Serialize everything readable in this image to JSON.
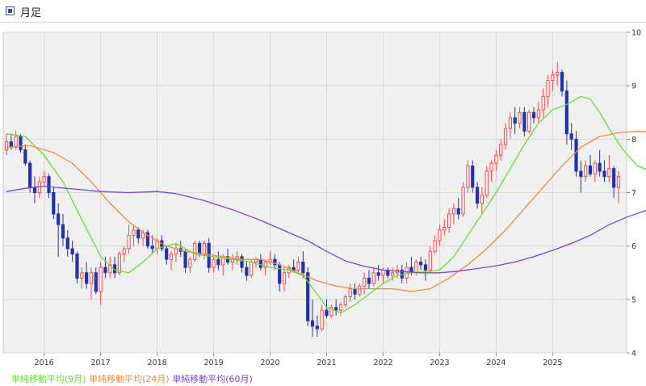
{
  "header": {
    "title": "月足"
  },
  "legend": [
    {
      "label": "単純移動平均(9月)",
      "color": "#66dd33"
    },
    {
      "label": "単純移動平均(24月)",
      "color": "#f08a40"
    },
    {
      "label": "単純移動平均(60月)",
      "color": "#7744dd"
    }
  ],
  "colors": {
    "up": "#ff4444",
    "down": "#2233aa",
    "plot_bg": "#f0f0f0",
    "grid": "#d8d8d8"
  },
  "chart_data": {
    "type": "candlestick",
    "title": "",
    "xlabel": "",
    "ylabel": "",
    "ylim": [
      4,
      10
    ],
    "yticks": [
      4,
      5,
      6,
      7,
      8,
      9,
      10
    ],
    "grid": true,
    "x": [
      "2015-05",
      "2025-04"
    ],
    "xticks": [
      {
        "label": "2016",
        "month": "2016-01"
      },
      {
        "label": "2017",
        "month": "2017-01"
      },
      {
        "label": "2018",
        "month": "2018-01"
      },
      {
        "label": "2019",
        "month": "2019-01"
      },
      {
        "label": "2020",
        "month": "2020-01"
      },
      {
        "label": "2021",
        "month": "2021-01"
      },
      {
        "label": "2022",
        "month": "2022-01"
      },
      {
        "label": "2023",
        "month": "2023-01"
      },
      {
        "label": "2024",
        "month": "2024-01"
      },
      {
        "label": "2025",
        "month": "2025-01"
      }
    ],
    "candles_ohlc": [
      [
        7.8,
        8.1,
        7.7,
        7.95
      ],
      [
        7.95,
        8.1,
        7.8,
        7.85
      ],
      [
        7.85,
        8.15,
        7.8,
        8.05
      ],
      [
        8.05,
        8.1,
        7.75,
        7.8
      ],
      [
        7.8,
        7.9,
        7.5,
        7.55
      ],
      [
        7.55,
        7.6,
        7.0,
        7.1
      ],
      [
        7.1,
        7.3,
        6.8,
        7.0
      ],
      [
        7.0,
        7.3,
        6.9,
        7.2
      ],
      [
        7.2,
        7.4,
        7.1,
        7.3
      ],
      [
        7.3,
        7.35,
        6.9,
        7.0
      ],
      [
        7.0,
        7.1,
        6.5,
        6.6
      ],
      [
        6.6,
        6.8,
        5.8,
        6.4
      ],
      [
        6.4,
        6.6,
        6.0,
        6.15
      ],
      [
        6.15,
        6.3,
        5.8,
        5.95
      ],
      [
        5.95,
        6.1,
        5.7,
        5.85
      ],
      [
        5.85,
        5.9,
        5.3,
        5.4
      ],
      [
        5.4,
        5.6,
        5.2,
        5.5
      ],
      [
        5.5,
        5.7,
        5.2,
        5.3
      ],
      [
        5.3,
        5.6,
        5.0,
        5.5
      ],
      [
        5.5,
        5.6,
        5.1,
        5.15
      ],
      [
        5.15,
        5.7,
        4.9,
        5.6
      ],
      [
        5.6,
        5.8,
        5.4,
        5.5
      ],
      [
        5.5,
        5.8,
        5.4,
        5.65
      ],
      [
        5.65,
        5.8,
        5.4,
        5.5
      ],
      [
        5.5,
        5.9,
        5.45,
        5.85
      ],
      [
        5.85,
        6.0,
        5.7,
        5.95
      ],
      [
        5.95,
        6.4,
        5.85,
        6.2
      ],
      [
        6.2,
        6.4,
        6.0,
        6.3
      ],
      [
        6.3,
        6.35,
        6.05,
        6.15
      ],
      [
        6.15,
        6.3,
        6.0,
        6.25
      ],
      [
        6.25,
        6.3,
        5.95,
        6.0
      ],
      [
        6.0,
        6.2,
        5.85,
        5.95
      ],
      [
        5.95,
        6.15,
        5.85,
        6.1
      ],
      [
        6.1,
        6.2,
        5.9,
        5.95
      ],
      [
        5.95,
        6.0,
        5.65,
        5.75
      ],
      [
        5.75,
        5.9,
        5.55,
        5.85
      ],
      [
        5.85,
        6.05,
        5.7,
        5.95
      ],
      [
        5.95,
        6.1,
        5.8,
        5.9
      ],
      [
        5.9,
        5.95,
        5.5,
        5.6
      ],
      [
        5.6,
        5.8,
        5.5,
        5.75
      ],
      [
        5.75,
        6.1,
        5.7,
        6.05
      ],
      [
        6.05,
        6.1,
        5.8,
        5.85
      ],
      [
        5.85,
        6.1,
        5.75,
        6.05
      ],
      [
        6.05,
        6.15,
        5.5,
        5.6
      ],
      [
        5.6,
        5.8,
        5.5,
        5.75
      ],
      [
        5.75,
        5.9,
        5.55,
        5.65
      ],
      [
        5.65,
        5.85,
        5.45,
        5.8
      ],
      [
        5.8,
        5.95,
        5.65,
        5.7
      ],
      [
        5.7,
        5.85,
        5.55,
        5.75
      ],
      [
        5.75,
        5.9,
        5.65,
        5.8
      ],
      [
        5.8,
        5.85,
        5.5,
        5.6
      ],
      [
        5.6,
        5.7,
        5.35,
        5.45
      ],
      [
        5.45,
        5.75,
        5.4,
        5.7
      ],
      [
        5.7,
        5.8,
        5.6,
        5.75
      ],
      [
        5.75,
        5.85,
        5.55,
        5.6
      ],
      [
        5.6,
        5.75,
        5.45,
        5.7
      ],
      [
        5.7,
        5.9,
        5.65,
        5.75
      ],
      [
        5.75,
        5.85,
        5.55,
        5.65
      ],
      [
        5.65,
        5.7,
        5.15,
        5.3
      ],
      [
        5.3,
        5.6,
        5.15,
        5.5
      ],
      [
        5.5,
        5.65,
        5.4,
        5.6
      ],
      [
        5.6,
        5.75,
        5.5,
        5.55
      ],
      [
        5.55,
        5.8,
        5.5,
        5.7
      ],
      [
        5.7,
        5.9,
        5.4,
        5.5
      ],
      [
        5.5,
        5.6,
        4.5,
        4.6
      ],
      [
        4.6,
        5.0,
        4.3,
        4.5
      ],
      [
        4.5,
        4.7,
        4.3,
        4.45
      ],
      [
        4.45,
        4.9,
        4.4,
        4.8
      ],
      [
        4.8,
        5.0,
        4.65,
        4.7
      ],
      [
        4.7,
        4.9,
        4.65,
        4.85
      ],
      [
        4.85,
        5.0,
        4.7,
        4.8
      ],
      [
        4.8,
        4.95,
        4.7,
        4.9
      ],
      [
        4.9,
        5.1,
        4.85,
        5.05
      ],
      [
        5.05,
        5.3,
        4.95,
        5.2
      ],
      [
        5.2,
        5.3,
        5.0,
        5.1
      ],
      [
        5.1,
        5.3,
        5.05,
        5.25
      ],
      [
        5.25,
        5.5,
        5.1,
        5.4
      ],
      [
        5.4,
        5.55,
        5.2,
        5.3
      ],
      [
        5.3,
        5.6,
        5.25,
        5.5
      ],
      [
        5.5,
        5.65,
        5.35,
        5.45
      ],
      [
        5.45,
        5.6,
        5.3,
        5.55
      ],
      [
        5.55,
        5.6,
        5.4,
        5.45
      ],
      [
        5.45,
        5.6,
        5.35,
        5.5
      ],
      [
        5.5,
        5.65,
        5.4,
        5.55
      ],
      [
        5.55,
        5.65,
        5.3,
        5.4
      ],
      [
        5.4,
        5.7,
        5.3,
        5.6
      ],
      [
        5.6,
        5.8,
        5.45,
        5.5
      ],
      [
        5.5,
        5.75,
        5.45,
        5.7
      ],
      [
        5.7,
        5.8,
        5.55,
        5.65
      ],
      [
        5.65,
        5.75,
        5.35,
        5.55
      ],
      [
        5.55,
        6.0,
        5.5,
        5.9
      ],
      [
        5.9,
        6.2,
        5.85,
        6.1
      ],
      [
        6.1,
        6.4,
        6.0,
        6.3
      ],
      [
        6.3,
        6.5,
        6.2,
        6.35
      ],
      [
        6.35,
        6.7,
        6.25,
        6.6
      ],
      [
        6.6,
        6.8,
        6.4,
        6.7
      ],
      [
        6.7,
        6.9,
        6.5,
        6.6
      ],
      [
        6.6,
        7.2,
        6.55,
        7.1
      ],
      [
        7.1,
        7.6,
        7.0,
        7.5
      ],
      [
        7.5,
        7.6,
        7.0,
        7.1
      ],
      [
        7.1,
        7.2,
        6.7,
        6.8
      ],
      [
        6.8,
        7.1,
        6.6,
        6.95
      ],
      [
        6.95,
        7.5,
        6.9,
        7.4
      ],
      [
        7.4,
        7.6,
        7.2,
        7.55
      ],
      [
        7.55,
        7.8,
        7.4,
        7.7
      ],
      [
        7.7,
        8.0,
        7.6,
        7.9
      ],
      [
        7.9,
        8.3,
        7.8,
        8.2
      ],
      [
        8.2,
        8.5,
        8.0,
        8.4
      ],
      [
        8.4,
        8.6,
        8.1,
        8.3
      ],
      [
        8.3,
        8.6,
        8.2,
        8.5
      ],
      [
        8.5,
        8.6,
        8.05,
        8.15
      ],
      [
        8.15,
        8.55,
        8.1,
        8.5
      ],
      [
        8.5,
        8.6,
        8.3,
        8.4
      ],
      [
        8.4,
        8.7,
        8.3,
        8.55
      ],
      [
        8.55,
        8.95,
        8.4,
        8.8
      ],
      [
        8.8,
        9.2,
        8.6,
        9.1
      ],
      [
        9.1,
        9.3,
        8.9,
        9.2
      ],
      [
        9.2,
        9.45,
        9.0,
        9.25
      ],
      [
        9.25,
        9.3,
        8.8,
        8.9
      ],
      [
        8.9,
        9.1,
        7.9,
        8.1
      ],
      [
        8.1,
        8.3,
        7.8,
        8.0
      ],
      [
        8.0,
        8.15,
        7.3,
        7.4
      ],
      [
        7.4,
        7.6,
        7.0,
        7.3
      ],
      [
        7.3,
        7.6,
        7.2,
        7.5
      ],
      [
        7.5,
        7.7,
        7.3,
        7.35
      ],
      [
        7.35,
        7.6,
        7.2,
        7.55
      ],
      [
        7.55,
        7.8,
        7.3,
        7.4
      ],
      [
        7.4,
        7.6,
        7.2,
        7.3
      ],
      [
        7.3,
        7.7,
        7.2,
        7.45
      ],
      [
        7.45,
        7.5,
        6.9,
        7.1
      ],
      [
        7.1,
        7.4,
        6.8,
        7.3
      ]
    ],
    "series": [
      {
        "name": "単純移動平均(9月)",
        "color": "#66dd33",
        "points": [
          [
            0,
            8.1
          ],
          [
            4,
            8.05
          ],
          [
            8,
            7.7
          ],
          [
            12,
            7.2
          ],
          [
            16,
            6.5
          ],
          [
            20,
            5.8
          ],
          [
            23,
            5.55
          ],
          [
            26,
            5.5
          ],
          [
            29,
            5.7
          ],
          [
            32,
            5.95
          ],
          [
            36,
            6.05
          ],
          [
            40,
            5.85
          ],
          [
            44,
            5.8
          ],
          [
            48,
            5.75
          ],
          [
            52,
            5.7
          ],
          [
            56,
            5.6
          ],
          [
            60,
            5.55
          ],
          [
            63,
            5.45
          ],
          [
            66,
            5.1
          ],
          [
            68,
            4.85
          ],
          [
            71,
            4.75
          ],
          [
            74,
            4.9
          ],
          [
            77,
            5.1
          ],
          [
            80,
            5.3
          ],
          [
            83,
            5.45
          ],
          [
            86,
            5.5
          ],
          [
            89,
            5.52
          ],
          [
            92,
            5.55
          ],
          [
            95,
            5.8
          ],
          [
            98,
            6.2
          ],
          [
            101,
            6.6
          ],
          [
            104,
            7.0
          ],
          [
            107,
            7.45
          ],
          [
            110,
            7.9
          ],
          [
            113,
            8.3
          ],
          [
            116,
            8.55
          ],
          [
            119,
            8.65
          ],
          [
            122,
            8.8
          ],
          [
            124,
            8.75
          ],
          [
            126,
            8.5
          ],
          [
            128,
            8.2
          ],
          [
            131,
            7.8
          ],
          [
            134,
            7.5
          ],
          [
            137,
            7.4
          ]
        ]
      },
      {
        "name": "単純移動平均(24月)",
        "color": "#f08a40",
        "points": [
          [
            0,
            7.85
          ],
          [
            5,
            7.88
          ],
          [
            10,
            7.75
          ],
          [
            14,
            7.55
          ],
          [
            18,
            7.2
          ],
          [
            22,
            6.8
          ],
          [
            26,
            6.45
          ],
          [
            30,
            6.2
          ],
          [
            34,
            6.0
          ],
          [
            38,
            5.9
          ],
          [
            42,
            5.85
          ],
          [
            46,
            5.8
          ],
          [
            50,
            5.75
          ],
          [
            54,
            5.75
          ],
          [
            58,
            5.65
          ],
          [
            62,
            5.5
          ],
          [
            66,
            5.35
          ],
          [
            70,
            5.25
          ],
          [
            74,
            5.2
          ],
          [
            78,
            5.2
          ],
          [
            82,
            5.2
          ],
          [
            86,
            5.15
          ],
          [
            90,
            5.2
          ],
          [
            94,
            5.4
          ],
          [
            98,
            5.65
          ],
          [
            102,
            5.95
          ],
          [
            106,
            6.3
          ],
          [
            110,
            6.7
          ],
          [
            114,
            7.1
          ],
          [
            118,
            7.5
          ],
          [
            122,
            7.85
          ],
          [
            126,
            8.05
          ],
          [
            130,
            8.12
          ],
          [
            134,
            8.15
          ],
          [
            137,
            8.13
          ]
        ]
      },
      {
        "name": "単純移動平均(60月)",
        "color": "#7744dd",
        "points": [
          [
            0,
            7.02
          ],
          [
            4,
            7.08
          ],
          [
            8,
            7.12
          ],
          [
            14,
            7.07
          ],
          [
            20,
            7.02
          ],
          [
            26,
            7.0
          ],
          [
            32,
            7.02
          ],
          [
            36,
            6.98
          ],
          [
            42,
            6.85
          ],
          [
            48,
            6.68
          ],
          [
            54,
            6.48
          ],
          [
            60,
            6.25
          ],
          [
            64,
            6.1
          ],
          [
            68,
            5.9
          ],
          [
            72,
            5.72
          ],
          [
            76,
            5.62
          ],
          [
            80,
            5.55
          ],
          [
            84,
            5.52
          ],
          [
            88,
            5.5
          ],
          [
            92,
            5.5
          ],
          [
            96,
            5.53
          ],
          [
            100,
            5.58
          ],
          [
            104,
            5.63
          ],
          [
            108,
            5.7
          ],
          [
            112,
            5.8
          ],
          [
            116,
            5.92
          ],
          [
            120,
            6.05
          ],
          [
            124,
            6.2
          ],
          [
            128,
            6.4
          ],
          [
            132,
            6.55
          ],
          [
            136,
            6.67
          ],
          [
            139,
            6.8
          ]
        ]
      }
    ]
  }
}
